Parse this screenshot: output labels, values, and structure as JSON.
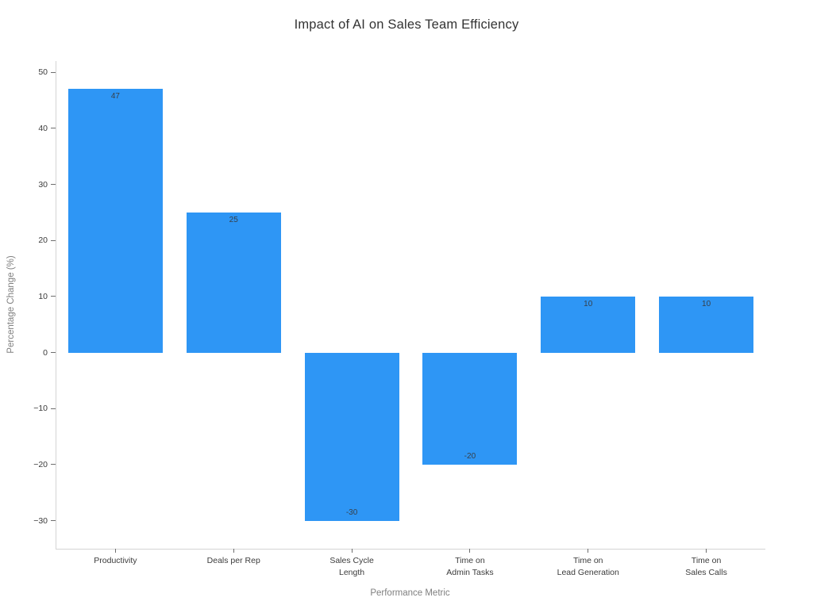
{
  "chart_data": {
    "type": "bar",
    "title": "Impact of AI on Sales Team Efficiency",
    "xlabel": "Performance Metric",
    "ylabel": "Percentage Change (%)",
    "categories": [
      "Productivity",
      "Deals per Rep",
      "Sales Cycle\nLength",
      "Time on\nAdmin Tasks",
      "Time on\nLead Generation",
      "Time on\nSales Calls"
    ],
    "values": [
      47,
      25,
      -30,
      -20,
      10,
      10
    ],
    "bar_labels": [
      "47",
      "25",
      "-30",
      "-20",
      "10",
      "10"
    ],
    "y_ticks": [
      50,
      40,
      30,
      20,
      10,
      0,
      -10,
      -20,
      -30
    ],
    "ylim": [
      -35,
      52
    ],
    "bar_width_fraction": 0.8,
    "grid": false,
    "legend_position": "none",
    "colors": {
      "bar": "#2E96F5",
      "title_text": "#333333",
      "tick_text": "#3b3b3b",
      "axis_title_text": "#7f7f7f",
      "spine": "#d4d4d4",
      "bar_label_text": "#37404a"
    }
  }
}
